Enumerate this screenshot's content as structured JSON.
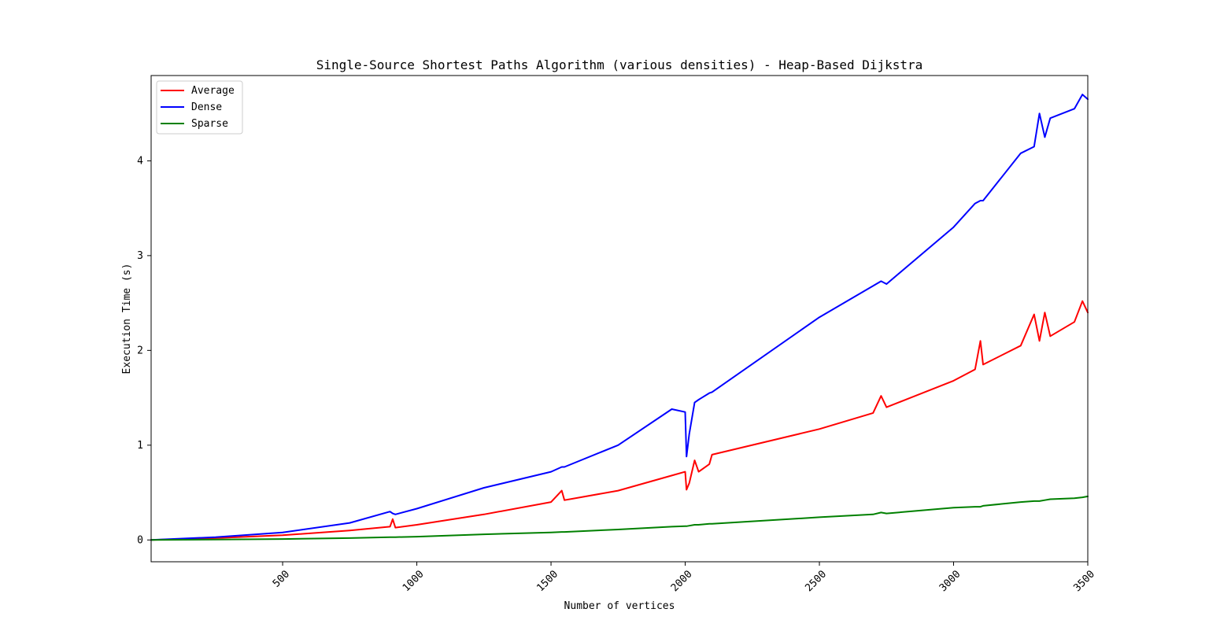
{
  "chart_data": {
    "type": "line",
    "title": "Single-Source Shortest Paths Algorithm (various densities) - Heap-Based Dijkstra",
    "xlabel": "Number of vertices",
    "ylabel": "Execution Time (s)",
    "xlim": [
      10,
      3500
    ],
    "ylim": [
      -0.23,
      4.9
    ],
    "xticks": [
      500,
      1000,
      1500,
      2000,
      2500,
      3000,
      3500
    ],
    "xtick_labels": [
      "500",
      "1000",
      "1500",
      "2000",
      "2500",
      "3000",
      "3500"
    ],
    "yticks": [
      0,
      1,
      2,
      3,
      4
    ],
    "ytick_labels": [
      "0",
      "1",
      "2",
      "3",
      "4"
    ],
    "grid": false,
    "legend_position": "upper-left",
    "x": [
      10,
      250,
      500,
      750,
      900,
      910,
      920,
      1000,
      1250,
      1500,
      1540,
      1550,
      1750,
      1950,
      2000,
      2005,
      2015,
      2035,
      2050,
      2090,
      2100,
      2500,
      2700,
      2730,
      2750,
      3000,
      3080,
      3100,
      3110,
      3250,
      3300,
      3320,
      3340,
      3360,
      3450,
      3480,
      3500
    ],
    "series": [
      {
        "name": "Average",
        "color": "#ff0000",
        "values": [
          0.0,
          0.02,
          0.05,
          0.1,
          0.14,
          0.22,
          0.13,
          0.16,
          0.27,
          0.4,
          0.52,
          0.42,
          0.52,
          0.68,
          0.72,
          0.53,
          0.6,
          0.84,
          0.72,
          0.8,
          0.9,
          1.17,
          1.34,
          1.52,
          1.4,
          1.68,
          1.8,
          2.1,
          1.85,
          2.05,
          2.38,
          2.1,
          2.4,
          2.15,
          2.3,
          2.52,
          2.4
        ]
      },
      {
        "name": "Dense",
        "color": "#0000ff",
        "values": [
          0.0,
          0.03,
          0.08,
          0.18,
          0.3,
          0.28,
          0.27,
          0.33,
          0.55,
          0.72,
          0.77,
          0.77,
          1.0,
          1.38,
          1.35,
          0.88,
          1.12,
          1.45,
          1.48,
          1.55,
          1.56,
          2.35,
          2.68,
          2.73,
          2.7,
          3.3,
          3.55,
          3.58,
          3.58,
          4.08,
          4.15,
          4.5,
          4.25,
          4.45,
          4.55,
          4.7,
          4.65
        ]
      },
      {
        "name": "Sparse",
        "color": "#008000",
        "values": [
          0.0,
          0.005,
          0.01,
          0.02,
          0.03,
          0.03,
          0.03,
          0.035,
          0.06,
          0.08,
          0.085,
          0.085,
          0.11,
          0.14,
          0.145,
          0.145,
          0.15,
          0.16,
          0.16,
          0.17,
          0.17,
          0.24,
          0.27,
          0.29,
          0.28,
          0.34,
          0.35,
          0.35,
          0.36,
          0.4,
          0.41,
          0.41,
          0.42,
          0.43,
          0.44,
          0.45,
          0.46
        ]
      }
    ]
  }
}
